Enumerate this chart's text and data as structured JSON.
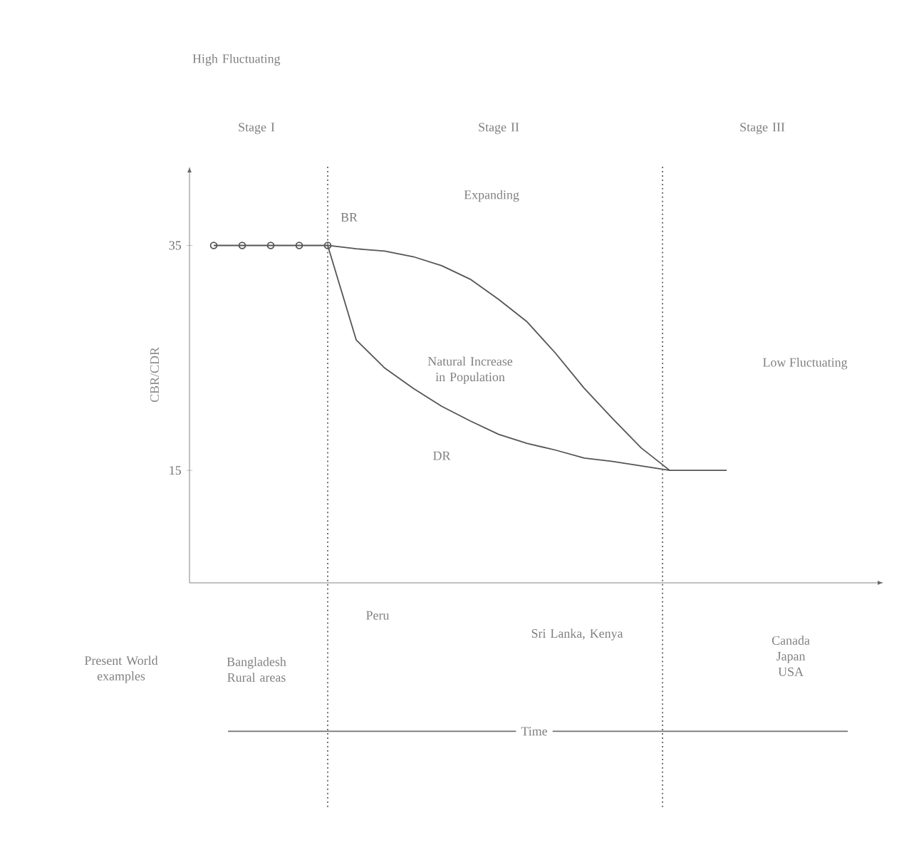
{
  "chart_data": {
    "type": "line",
    "ylabel": "CBR/CDR",
    "categories": [
      null,
      null,
      null,
      null,
      null,
      null,
      null,
      null,
      null,
      null,
      null,
      null,
      null,
      null,
      null,
      null,
      null,
      null,
      null
    ],
    "ylim": [
      5,
      42
    ],
    "yticks": [
      35,
      15
    ],
    "series": [
      {
        "name": "BR",
        "color": "#555555",
        "values": [
          35,
          35,
          35,
          35,
          35,
          34.7,
          34.5,
          34,
          33.2,
          32,
          30.2,
          28.2,
          25.4,
          22.3,
          19.6,
          17,
          15,
          15,
          15
        ]
      },
      {
        "name": "DR",
        "color": "#555555",
        "values": [
          null,
          null,
          null,
          null,
          35,
          26.6,
          24.1,
          22.3,
          20.7,
          19.4,
          18.2,
          17.4,
          16.8,
          16.1,
          15.8,
          15.4,
          15,
          null,
          null
        ]
      },
      {
        "type": "scatter",
        "color": "#555555",
        "marker": "circle",
        "values": [
          35,
          35,
          35,
          35,
          35,
          null,
          null,
          null,
          null,
          null,
          null,
          null,
          null,
          null,
          null,
          null,
          null,
          null,
          null
        ]
      }
    ],
    "annotations": [
      "High Fluctuating",
      "Stage I",
      "Stage II",
      "Stage III",
      "Expanding",
      "Natural Increase in Population",
      "Low Fluctuating",
      "Bangladesh Rural areas",
      "Peru",
      "Sri Lanka, Kenya",
      "Canada Japan USA",
      "Present World examples",
      "Time"
    ]
  }
}
